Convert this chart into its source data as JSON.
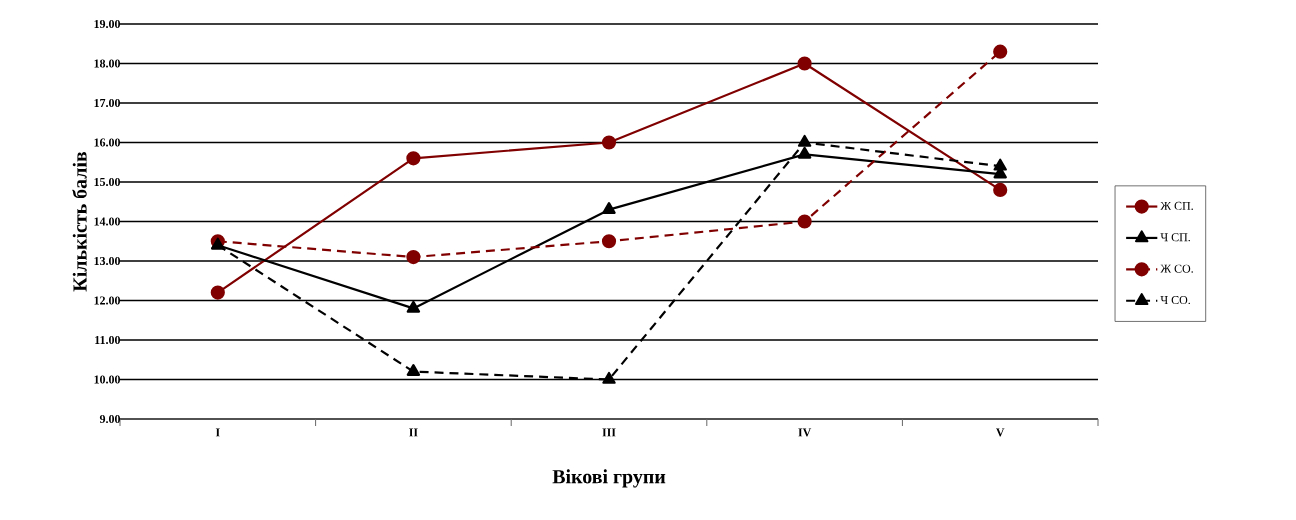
{
  "chart_data": {
    "type": "line",
    "xlabel": "Вікові групи",
    "ylabel": "Кількість балів",
    "categories": [
      "I",
      "II",
      "III",
      "IV",
      "V"
    ],
    "ylim": [
      9,
      19
    ],
    "yticks": [
      {
        "value": 9,
        "label": "9.00"
      },
      {
        "value": 10,
        "label": "10.00"
      },
      {
        "value": 11,
        "label": "11.00"
      },
      {
        "value": 12,
        "label": "12.00"
      },
      {
        "value": 13,
        "label": "13.00"
      },
      {
        "value": 14,
        "label": "14.00"
      },
      {
        "value": 15,
        "label": "15.00"
      },
      {
        "value": 16,
        "label": "16.00"
      },
      {
        "value": 17,
        "label": "17.00"
      },
      {
        "value": 18,
        "label": "18.00"
      },
      {
        "value": 19,
        "label": "19.00"
      }
    ],
    "grid": "y",
    "legend": "right",
    "series": [
      {
        "name": "Ж СП.",
        "color": "#800000",
        "marker": "circle",
        "line_style": "solid",
        "values": [
          12.2,
          15.6,
          16.0,
          18.0,
          14.8
        ]
      },
      {
        "name": "Ч СП.",
        "color": "#000000",
        "marker": "triangle",
        "line_style": "solid",
        "values": [
          13.4,
          11.8,
          14.3,
          15.7,
          15.2
        ]
      },
      {
        "name": "Ж СО.",
        "color": "#800000",
        "marker": "circle",
        "line_style": "dashed",
        "values": [
          13.5,
          13.1,
          13.5,
          14.0,
          18.3
        ]
      },
      {
        "name": "Ч СО.",
        "color": "#000000",
        "marker": "triangle",
        "line_style": "dashed",
        "values": [
          13.4,
          10.2,
          10.0,
          16.0,
          15.4
        ]
      }
    ]
  }
}
